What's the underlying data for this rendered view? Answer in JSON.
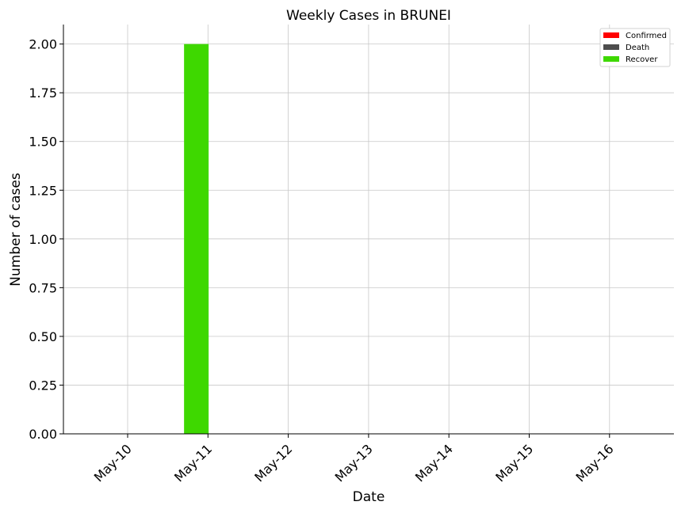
{
  "chart_data": {
    "type": "bar",
    "title": "Weekly Cases in BRUNEI",
    "xlabel": "Date",
    "ylabel": "Number of cases",
    "categories": [
      "May-10",
      "May-11",
      "May-12",
      "May-13",
      "May-14",
      "May-15",
      "May-16"
    ],
    "series": [
      {
        "name": "Confirmed",
        "color": "#ff0000",
        "values": [
          0,
          0,
          0,
          0,
          0,
          0,
          0
        ]
      },
      {
        "name": "Death",
        "color": "#4d4d4d",
        "values": [
          0,
          0,
          0,
          0,
          0,
          0,
          0
        ]
      },
      {
        "name": "Recover",
        "color": "#3ed800",
        "values": [
          0,
          2,
          0,
          0,
          0,
          0,
          0
        ]
      }
    ],
    "ylim": [
      0,
      2.1
    ],
    "yticks": [
      0,
      0.25,
      0.5,
      0.75,
      1.0,
      1.25,
      1.5,
      1.75,
      2.0
    ],
    "grid": true,
    "legend_position": "top-right"
  }
}
